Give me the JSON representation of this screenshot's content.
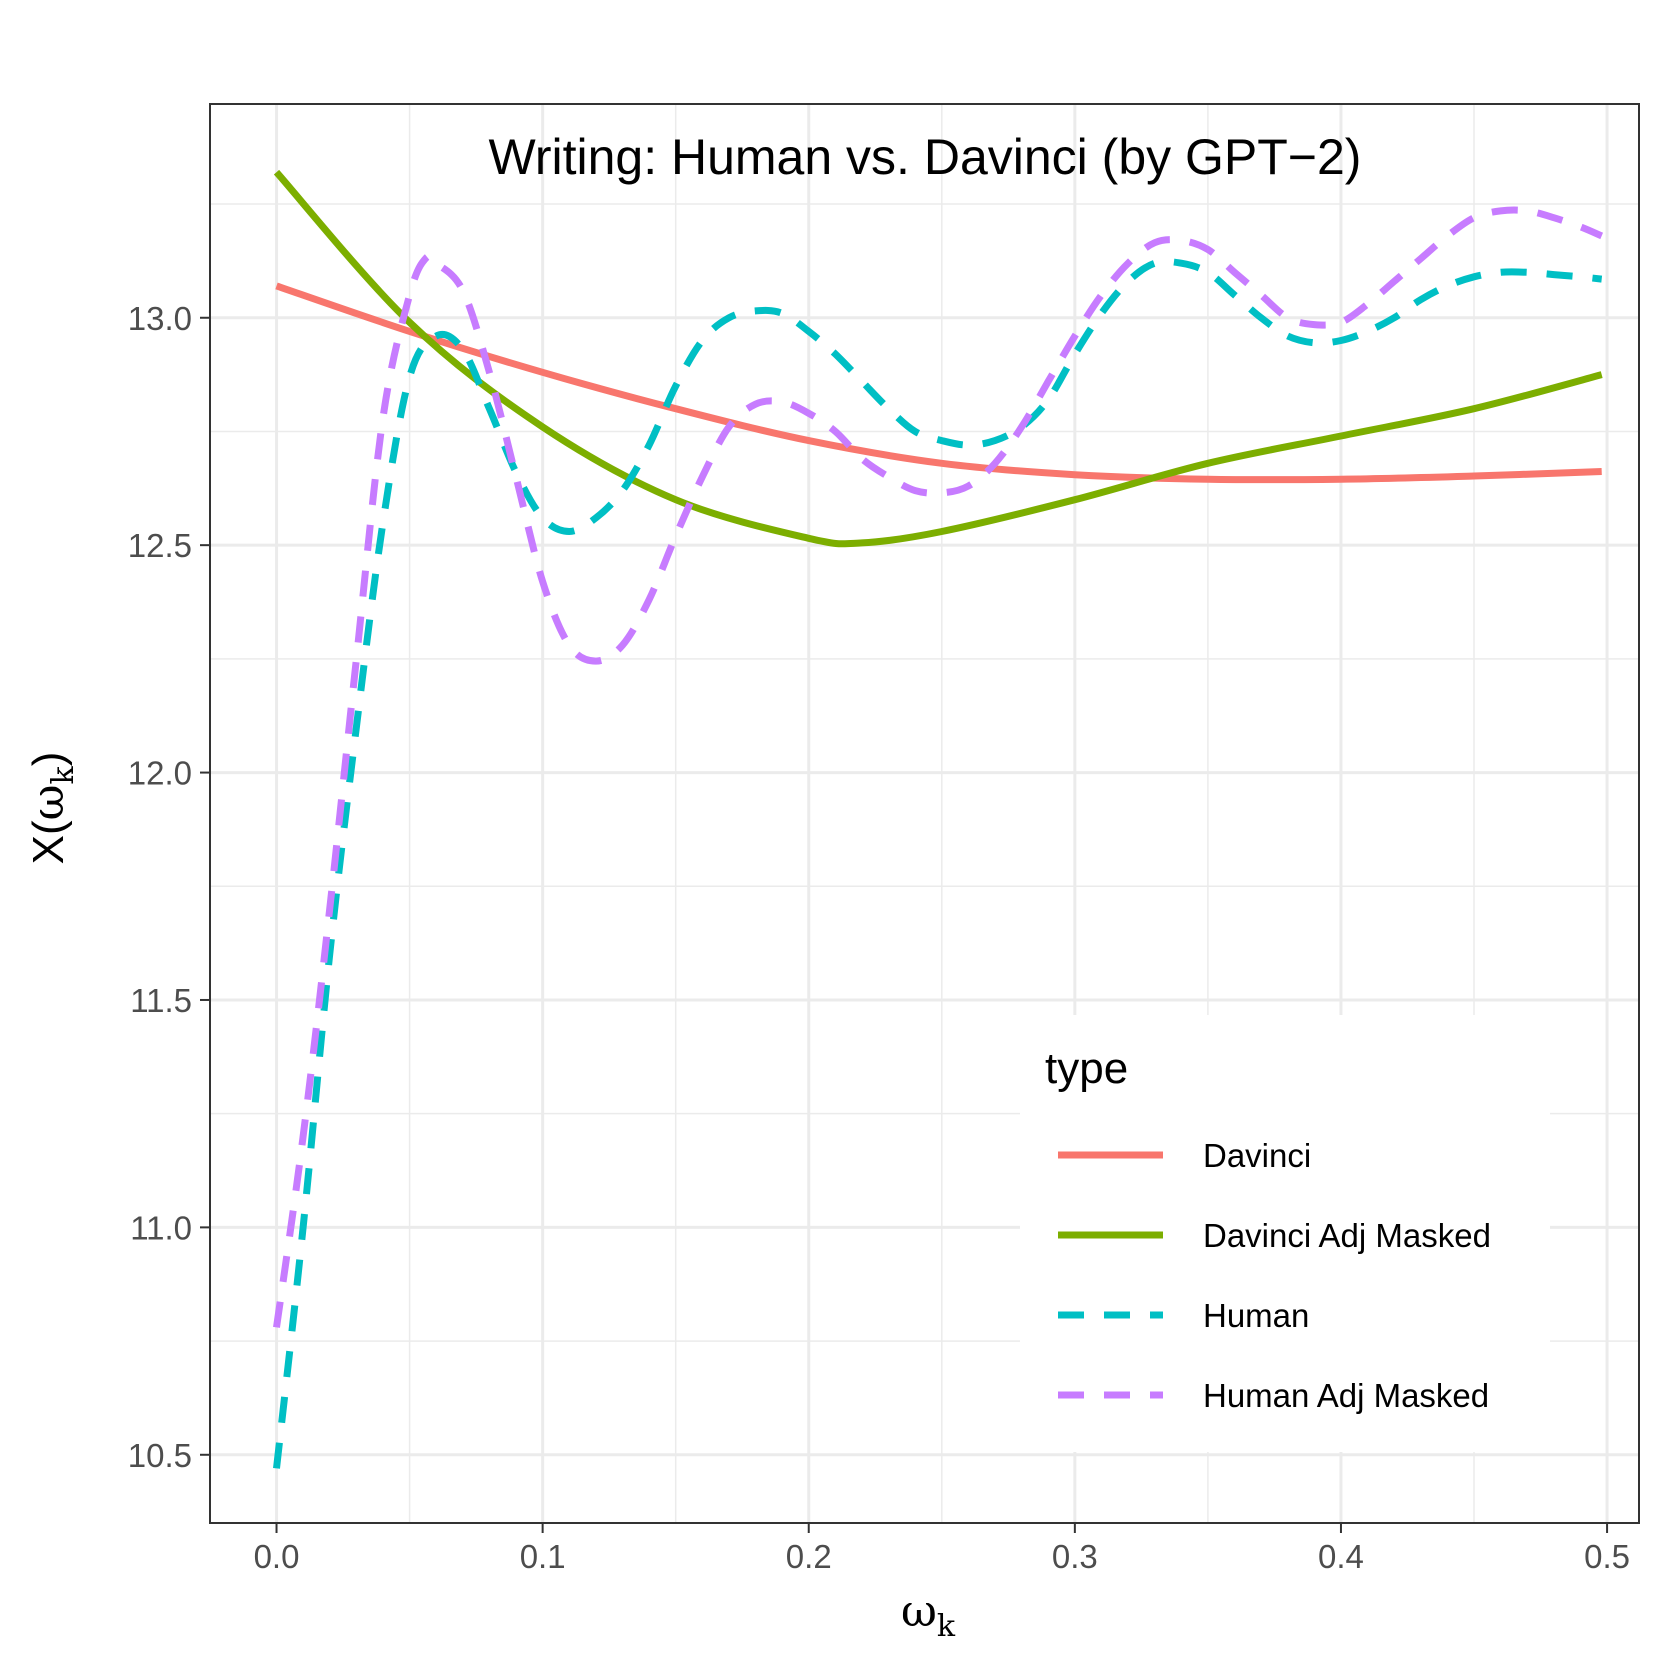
{
  "chart_data": {
    "type": "line",
    "title": "Writing: Human vs. Davinci (by GPT−2)",
    "xlabel_base": "ω",
    "xlabel_sub": "k",
    "ylabel_base": "X(",
    "ylabel_omega": "ω",
    "ylabel_sub": "k",
    "ylabel_close": ")",
    "xlim": [
      -0.025,
      0.512
    ],
    "ylim": [
      10.35,
      13.47
    ],
    "x_ticks": [
      0.0,
      0.1,
      0.2,
      0.3,
      0.4,
      0.5
    ],
    "x_tick_labels": [
      "0.0",
      "0.1",
      "0.2",
      "0.3",
      "0.4",
      "0.5"
    ],
    "y_ticks": [
      10.5,
      11.0,
      11.5,
      12.0,
      12.5,
      13.0
    ],
    "y_tick_labels": [
      "10.5",
      "11.0",
      "11.5",
      "12.0",
      "12.5",
      "13.0"
    ],
    "grid": true,
    "legend_title": "type",
    "legend_position": "bottom-right",
    "series": [
      {
        "name": "Davinci",
        "color": "#F8766D",
        "dash": "solid",
        "points": [
          [
            0.0,
            13.07
          ],
          [
            0.05,
            12.97
          ],
          [
            0.1,
            12.88
          ],
          [
            0.15,
            12.8
          ],
          [
            0.2,
            12.73
          ],
          [
            0.25,
            12.68
          ],
          [
            0.3,
            12.655
          ],
          [
            0.35,
            12.645
          ],
          [
            0.4,
            12.645
          ],
          [
            0.45,
            12.652
          ],
          [
            0.498,
            12.662
          ]
        ]
      },
      {
        "name": "Davinci Adj Masked",
        "color": "#7CAE00",
        "dash": "solid",
        "points": [
          [
            0.0,
            13.32
          ],
          [
            0.05,
            12.99
          ],
          [
            0.1,
            12.76
          ],
          [
            0.15,
            12.6
          ],
          [
            0.2,
            12.515
          ],
          [
            0.22,
            12.505
          ],
          [
            0.25,
            12.53
          ],
          [
            0.3,
            12.6
          ],
          [
            0.35,
            12.68
          ],
          [
            0.4,
            12.74
          ],
          [
            0.45,
            12.8
          ],
          [
            0.498,
            12.875
          ]
        ]
      },
      {
        "name": "Human",
        "color": "#00BFC4",
        "dash": "dashed",
        "points": [
          [
            0.0,
            10.47
          ],
          [
            0.01,
            11.0
          ],
          [
            0.02,
            11.6
          ],
          [
            0.03,
            12.1
          ],
          [
            0.04,
            12.55
          ],
          [
            0.05,
            12.87
          ],
          [
            0.06,
            12.96
          ],
          [
            0.07,
            12.93
          ],
          [
            0.08,
            12.8
          ],
          [
            0.09,
            12.66
          ],
          [
            0.1,
            12.56
          ],
          [
            0.11,
            12.53
          ],
          [
            0.12,
            12.56
          ],
          [
            0.13,
            12.62
          ],
          [
            0.14,
            12.72
          ],
          [
            0.15,
            12.85
          ],
          [
            0.16,
            12.95
          ],
          [
            0.17,
            13.0
          ],
          [
            0.18,
            13.015
          ],
          [
            0.19,
            13.01
          ],
          [
            0.2,
            12.97
          ],
          [
            0.21,
            12.92
          ],
          [
            0.22,
            12.86
          ],
          [
            0.23,
            12.8
          ],
          [
            0.24,
            12.75
          ],
          [
            0.25,
            12.73
          ],
          [
            0.26,
            12.72
          ],
          [
            0.27,
            12.73
          ],
          [
            0.28,
            12.76
          ],
          [
            0.29,
            12.82
          ],
          [
            0.3,
            12.92
          ],
          [
            0.31,
            13.01
          ],
          [
            0.32,
            13.08
          ],
          [
            0.33,
            13.12
          ],
          [
            0.34,
            13.12
          ],
          [
            0.35,
            13.1
          ],
          [
            0.36,
            13.05
          ],
          [
            0.37,
            13.0
          ],
          [
            0.38,
            12.96
          ],
          [
            0.39,
            12.945
          ],
          [
            0.4,
            12.95
          ],
          [
            0.41,
            12.97
          ],
          [
            0.42,
            13.0
          ],
          [
            0.43,
            13.04
          ],
          [
            0.44,
            13.07
          ],
          [
            0.45,
            13.09
          ],
          [
            0.46,
            13.1
          ],
          [
            0.47,
            13.1
          ],
          [
            0.48,
            13.095
          ],
          [
            0.49,
            13.09
          ],
          [
            0.498,
            13.085
          ]
        ]
      },
      {
        "name": "Human Adj Masked",
        "color": "#C77CFF",
        "dash": "dashed",
        "points": [
          [
            0.0,
            10.78
          ],
          [
            0.01,
            11.2
          ],
          [
            0.02,
            11.7
          ],
          [
            0.03,
            12.25
          ],
          [
            0.04,
            12.78
          ],
          [
            0.05,
            13.05
          ],
          [
            0.056,
            13.13
          ],
          [
            0.06,
            13.12
          ],
          [
            0.07,
            13.06
          ],
          [
            0.08,
            12.88
          ],
          [
            0.09,
            12.65
          ],
          [
            0.1,
            12.42
          ],
          [
            0.11,
            12.28
          ],
          [
            0.12,
            12.245
          ],
          [
            0.13,
            12.28
          ],
          [
            0.14,
            12.38
          ],
          [
            0.15,
            12.52
          ],
          [
            0.16,
            12.65
          ],
          [
            0.17,
            12.76
          ],
          [
            0.18,
            12.81
          ],
          [
            0.19,
            12.815
          ],
          [
            0.2,
            12.79
          ],
          [
            0.21,
            12.75
          ],
          [
            0.22,
            12.69
          ],
          [
            0.23,
            12.65
          ],
          [
            0.24,
            12.62
          ],
          [
            0.25,
            12.615
          ],
          [
            0.26,
            12.63
          ],
          [
            0.27,
            12.68
          ],
          [
            0.28,
            12.76
          ],
          [
            0.29,
            12.86
          ],
          [
            0.3,
            12.96
          ],
          [
            0.31,
            13.05
          ],
          [
            0.32,
            13.12
          ],
          [
            0.33,
            13.165
          ],
          [
            0.34,
            13.17
          ],
          [
            0.35,
            13.15
          ],
          [
            0.36,
            13.1
          ],
          [
            0.37,
            13.05
          ],
          [
            0.38,
            13.0
          ],
          [
            0.39,
            12.985
          ],
          [
            0.4,
            12.99
          ],
          [
            0.41,
            13.03
          ],
          [
            0.42,
            13.08
          ],
          [
            0.43,
            13.13
          ],
          [
            0.44,
            13.18
          ],
          [
            0.45,
            13.22
          ],
          [
            0.46,
            13.235
          ],
          [
            0.47,
            13.235
          ],
          [
            0.48,
            13.22
          ],
          [
            0.49,
            13.2
          ],
          [
            0.498,
            13.18
          ]
        ]
      }
    ]
  }
}
